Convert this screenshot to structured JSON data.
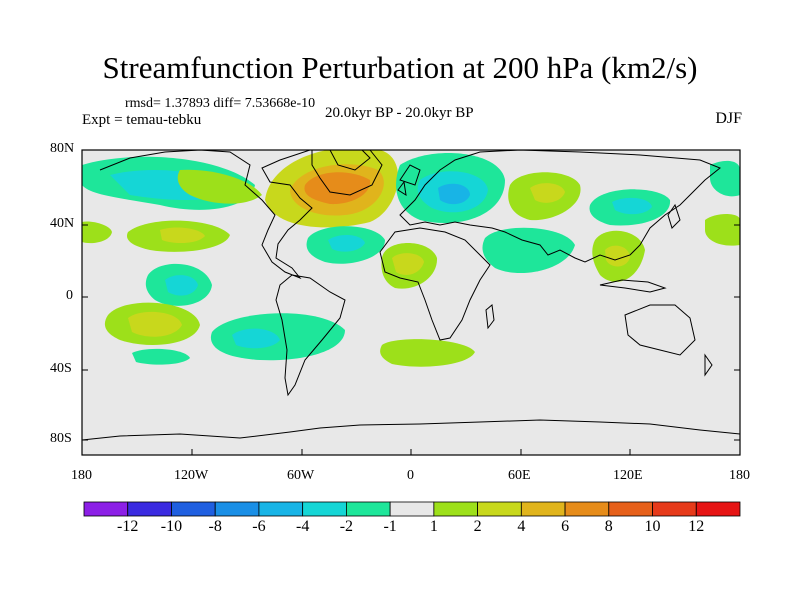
{
  "title": "Streamfunction Perturbation at 200 hPa (km2/s)",
  "stats": "rmsd= 1.37893 diff= 7.53668e-10",
  "experiment": "Expt = temau-tebku",
  "period": "20.0kyr BP - 20.0kyr BP",
  "season": "DJF",
  "lat_ticks": [
    "80N",
    "40N",
    "0",
    "40S",
    "80S"
  ],
  "lon_ticks": [
    "180",
    "120W",
    "60W",
    "0",
    "60E",
    "120E",
    "180"
  ],
  "colorbar": {
    "labels": [
      "-12",
      "-10",
      "-8",
      "-6",
      "-4",
      "-2",
      "-1",
      "1",
      "2",
      "4",
      "6",
      "8",
      "10",
      "12"
    ],
    "colors": [
      "#8c1fe6",
      "#3a2ae0",
      "#1f5fe0",
      "#1a8fe6",
      "#18b4e6",
      "#15d6d6",
      "#1ee69a",
      "#e8e8e8",
      "#9de01a",
      "#c8d81c",
      "#e0b41c",
      "#e68c1a",
      "#e6601a",
      "#e63a1a",
      "#e61414"
    ]
  }
}
